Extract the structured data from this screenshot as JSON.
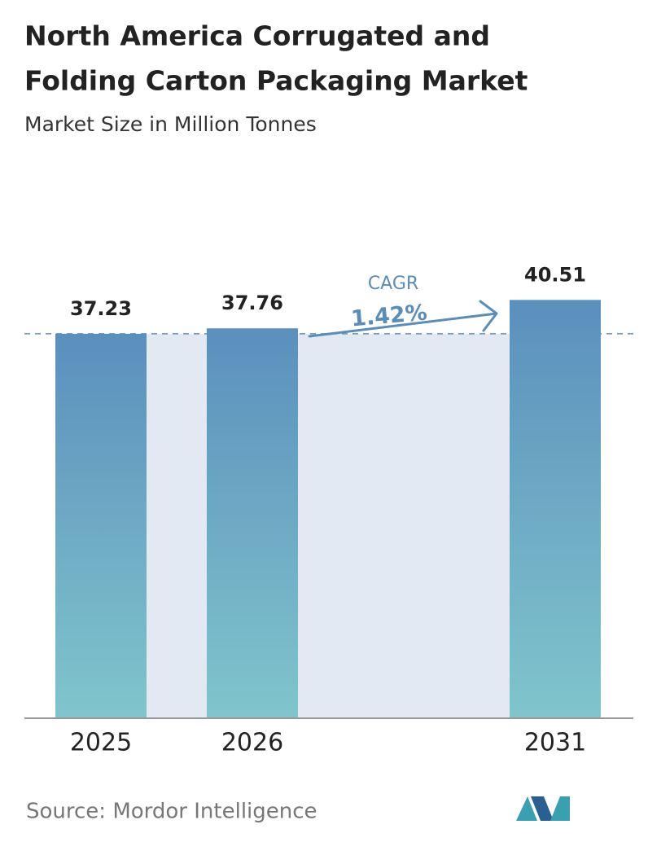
{
  "chart_data": {
    "type": "bar",
    "title": [
      "North America Corrugated and",
      "Folding Carton Packaging Market"
    ],
    "subtitle": "Market Size in Million Tonnes",
    "categories": [
      "2025",
      "2026",
      "2031"
    ],
    "values": [
      37.23,
      37.76,
      40.51
    ],
    "color": [
      "#5b8fbd",
      "#80c5cc"
    ],
    "annotation": {
      "label": "CAGR",
      "value": "1.42%"
    },
    "source": "Source:  Mordor Intelligence"
  }
}
